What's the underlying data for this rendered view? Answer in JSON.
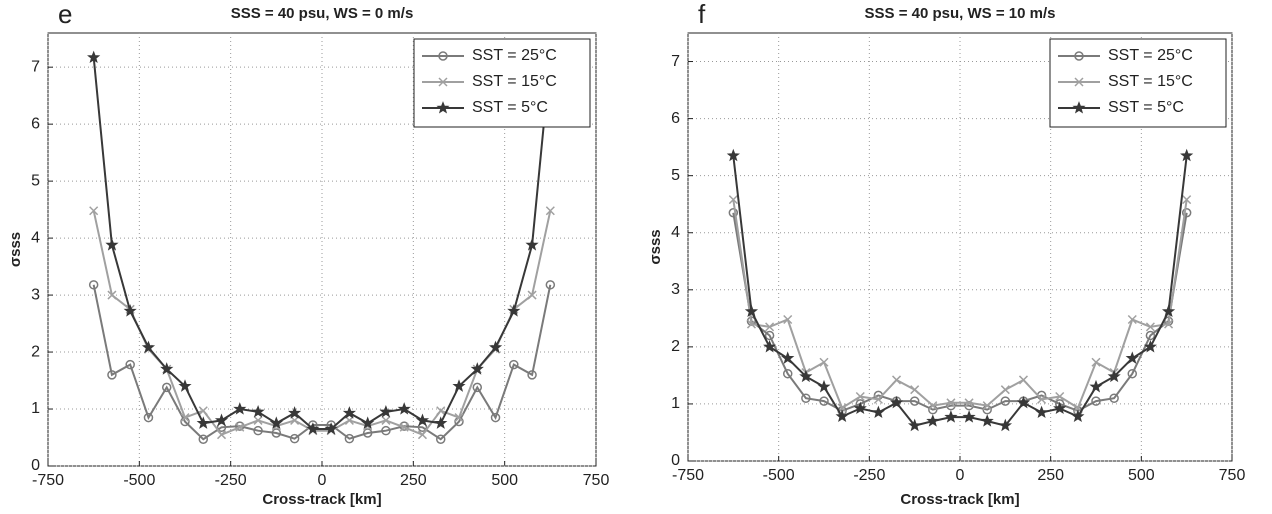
{
  "chart_data": [
    {
      "type": "line",
      "panel_label": "e",
      "title": "SSS = 40 psu, WS = 0 m/s",
      "xlabel": "Cross-track [km]",
      "ylabel": "σsss",
      "xlim": [
        -750,
        750
      ],
      "xticks": [
        -750,
        -500,
        -250,
        0,
        250,
        500,
        750
      ],
      "ylim": [
        0,
        7.6
      ],
      "yticks": [
        0,
        1,
        2,
        3,
        4,
        5,
        6,
        7
      ],
      "grid": true,
      "legend": "upper right",
      "x": [
        -625,
        -575,
        -525,
        -475,
        -425,
        -375,
        -325,
        -275,
        -225,
        -175,
        -125,
        -75,
        -25,
        25,
        75,
        125,
        175,
        225,
        275,
        325,
        375,
        425,
        475,
        525,
        575,
        625
      ],
      "series": [
        {
          "name": "SST = 25°C",
          "color": "#7a7a7a",
          "marker": "circle",
          "values": [
            3.18,
            1.6,
            1.78,
            0.85,
            1.38,
            0.78,
            0.47,
            0.68,
            0.7,
            0.62,
            0.58,
            0.48,
            0.72,
            0.72,
            0.48,
            0.58,
            0.62,
            0.7,
            0.68,
            0.47,
            0.78,
            1.38,
            0.85,
            1.78,
            1.6,
            3.18
          ]
        },
        {
          "name": "SST = 15°C",
          "color": "#a0a0a0",
          "marker": "x",
          "values": [
            4.48,
            3.0,
            2.75,
            2.05,
            1.7,
            0.85,
            0.97,
            0.55,
            0.68,
            0.8,
            0.7,
            0.8,
            0.62,
            0.62,
            0.8,
            0.7,
            0.8,
            0.68,
            0.55,
            0.97,
            0.85,
            1.7,
            2.05,
            2.75,
            3.0,
            4.48
          ]
        },
        {
          "name": "SST = 5°C",
          "color": "#383838",
          "marker": "star",
          "values": [
            7.17,
            3.88,
            2.72,
            2.08,
            1.7,
            1.4,
            0.75,
            0.8,
            1.0,
            0.95,
            0.75,
            0.93,
            0.65,
            0.65,
            0.93,
            0.75,
            0.95,
            1.0,
            0.8,
            0.75,
            1.4,
            1.7,
            2.08,
            2.72,
            3.88,
            7.17
          ]
        }
      ]
    },
    {
      "type": "line",
      "panel_label": "f",
      "title": "SSS = 40 psu, WS = 10 m/s",
      "xlabel": "Cross-track [km]",
      "ylabel": "σsss",
      "xlim": [
        -750,
        750
      ],
      "xticks": [
        -750,
        -500,
        -250,
        0,
        250,
        500,
        750
      ],
      "ylim": [
        0,
        7.5
      ],
      "yticks": [
        0,
        1,
        2,
        3,
        4,
        5,
        6,
        7
      ],
      "grid": true,
      "legend": "upper right",
      "x": [
        -625,
        -575,
        -525,
        -475,
        -425,
        -375,
        -325,
        -275,
        -225,
        -175,
        -125,
        -75,
        -25,
        25,
        75,
        125,
        175,
        225,
        275,
        325,
        375,
        425,
        475,
        525,
        575,
        625
      ],
      "series": [
        {
          "name": "SST = 25°C",
          "color": "#7a7a7a",
          "marker": "circle",
          "values": [
            4.35,
            2.45,
            2.2,
            1.53,
            1.1,
            1.05,
            0.88,
            1.0,
            1.15,
            1.05,
            1.05,
            0.9,
            0.97,
            0.97,
            0.9,
            1.05,
            1.05,
            1.15,
            1.0,
            0.88,
            1.05,
            1.1,
            1.53,
            2.2,
            2.45,
            4.35
          ]
        },
        {
          "name": "SST = 15°C",
          "color": "#a0a0a0",
          "marker": "x",
          "values": [
            4.58,
            2.4,
            2.35,
            2.48,
            1.55,
            1.73,
            0.93,
            1.13,
            1.08,
            1.42,
            1.25,
            0.97,
            1.02,
            1.02,
            0.97,
            1.25,
            1.42,
            1.08,
            1.13,
            0.93,
            1.73,
            1.55,
            2.48,
            2.35,
            2.4,
            4.58
          ]
        },
        {
          "name": "SST = 5°C",
          "color": "#383838",
          "marker": "star",
          "values": [
            5.35,
            2.62,
            2.0,
            1.8,
            1.48,
            1.3,
            0.78,
            0.92,
            0.85,
            1.02,
            0.62,
            0.7,
            0.77,
            0.77,
            0.7,
            0.62,
            1.02,
            0.85,
            0.92,
            0.78,
            1.3,
            1.48,
            1.8,
            2.0,
            2.62,
            5.35
          ]
        }
      ]
    }
  ]
}
